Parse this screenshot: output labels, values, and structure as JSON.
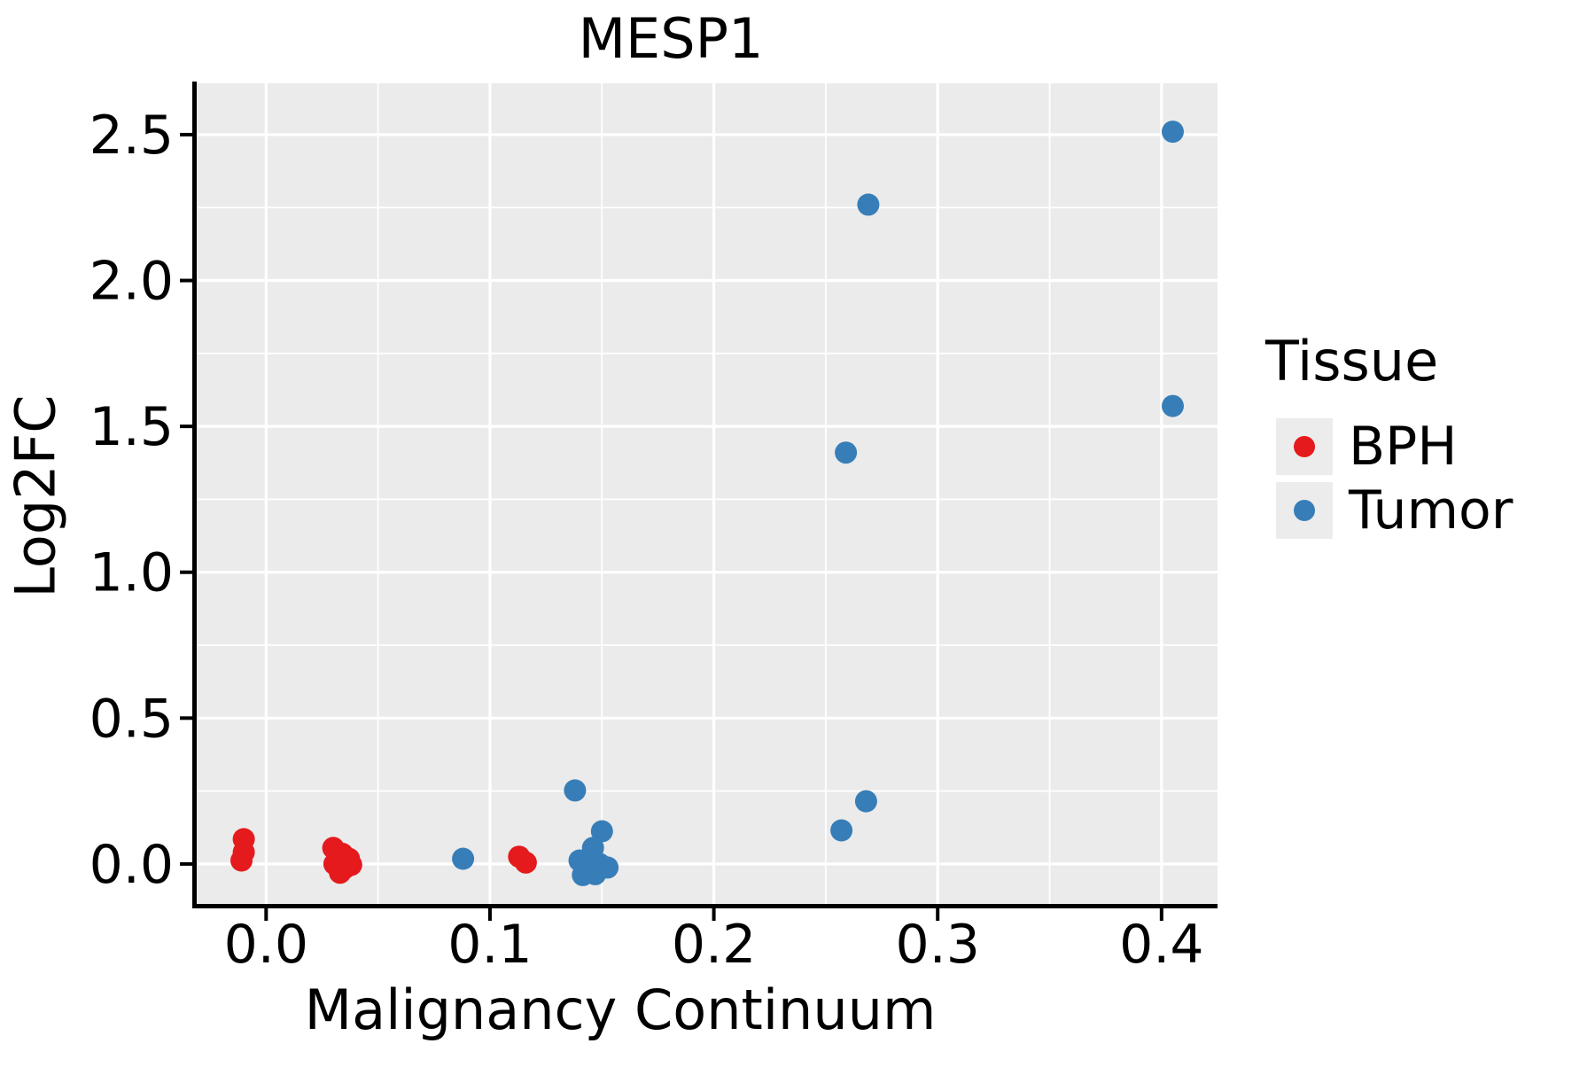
{
  "chart_data": {
    "type": "scatter",
    "title": "MESP1",
    "xlabel": "Malignancy Continuum",
    "ylabel": "Log2FC",
    "xlim": [
      -0.031,
      0.425
    ],
    "ylim": [
      -0.137,
      2.676
    ],
    "grid": true,
    "panel_background": "#EBEBEB",
    "grid_color": "#FFFFFF",
    "axis_color": "#000000",
    "x_ticks": {
      "values": [
        0.0,
        0.1,
        0.2,
        0.3,
        0.4
      ],
      "labels": [
        "0.0",
        "0.1",
        "0.2",
        "0.3",
        "0.4"
      ],
      "minor": [
        0.05,
        0.15,
        0.25,
        0.35
      ]
    },
    "y_ticks": {
      "values": [
        0.0,
        0.5,
        1.0,
        1.5,
        2.0,
        2.5
      ],
      "labels": [
        "0.0",
        "0.5",
        "1.0",
        "1.5",
        "2.0",
        "2.5"
      ],
      "minor": [
        0.25,
        0.75,
        1.25,
        1.75,
        2.25
      ]
    },
    "legend": {
      "title": "Tissue",
      "position": "right",
      "items": [
        {
          "label": "BPH",
          "color": "#E41A1C"
        },
        {
          "label": "Tumor",
          "color": "#377EB8"
        }
      ]
    },
    "series": [
      {
        "name": "BPH",
        "color": "#E41A1C",
        "points": [
          [
            -0.01,
            0.085
          ],
          [
            -0.01,
            0.04
          ],
          [
            -0.011,
            0.012
          ],
          [
            0.03,
            0.055
          ],
          [
            0.034,
            0.035
          ],
          [
            0.037,
            0.018
          ],
          [
            0.0305,
            0.0
          ],
          [
            0.035,
            -0.015
          ],
          [
            0.038,
            -0.003
          ],
          [
            0.033,
            -0.03
          ],
          [
            0.113,
            0.025
          ],
          [
            0.116,
            0.005
          ]
        ]
      },
      {
        "name": "Tumor",
        "color": "#377EB8",
        "points": [
          [
            0.405,
            2.51
          ],
          [
            0.269,
            2.26
          ],
          [
            0.405,
            1.57
          ],
          [
            0.259,
            1.41
          ],
          [
            0.268,
            0.215
          ],
          [
            0.257,
            0.115
          ],
          [
            0.138,
            0.252
          ],
          [
            0.088,
            0.018
          ],
          [
            0.15,
            0.112
          ],
          [
            0.146,
            0.055
          ],
          [
            0.14,
            0.012
          ],
          [
            0.1435,
            -0.018
          ],
          [
            0.149,
            0.0
          ],
          [
            0.1525,
            -0.012
          ],
          [
            0.1415,
            -0.038
          ],
          [
            0.147,
            -0.035
          ]
        ]
      }
    ]
  }
}
